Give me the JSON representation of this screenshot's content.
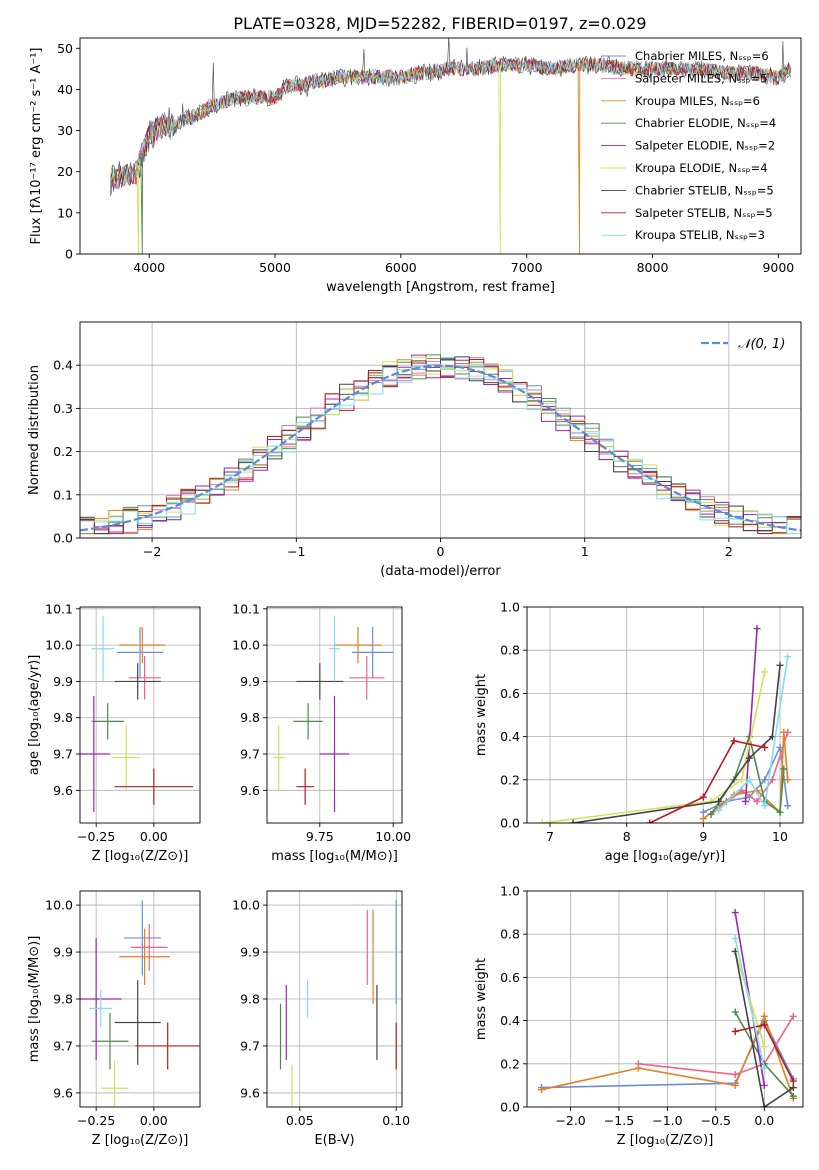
{
  "figure_title": "PLATE=0328, MJD=52282, FIBERID=0197, z=0.029",
  "chart_data": [
    {
      "id": "spectrum",
      "type": "line",
      "xlabel": "wavelength [Angstrom, rest frame]",
      "ylabel": "Flux [fλ10⁻¹⁷ erg cm⁻² s⁻¹ A⁻¹]",
      "xlim": [
        3450,
        9180
      ],
      "ylim": [
        0,
        52.5
      ],
      "xticks": [
        4000,
        5000,
        6000,
        7000,
        8000,
        9000
      ],
      "yticks": [
        0,
        10,
        20,
        30,
        40,
        50
      ],
      "grid": false,
      "legend_position": "top-right",
      "continuum_x": [
        3690,
        3800,
        3900,
        3950,
        4000,
        4100,
        4200,
        4300,
        4400,
        4500,
        4600,
        4700,
        4800,
        4900,
        5000,
        5100,
        5200,
        5300,
        5400,
        5500,
        5600,
        5800,
        6000,
        6200,
        6400,
        6600,
        6800,
        7000,
        7200,
        7400,
        7600,
        7800,
        8000,
        8200,
        8400,
        8600,
        8800,
        9000,
        9100
      ],
      "continuum_y": [
        18,
        19,
        20,
        25,
        29,
        31,
        31,
        33,
        34,
        36,
        37,
        38,
        38,
        38,
        38,
        41,
        41,
        42,
        42,
        43,
        43,
        43,
        43,
        44,
        45,
        45,
        46,
        46,
        45,
        46,
        46,
        45,
        45,
        45,
        45,
        44,
        44,
        43,
        45
      ],
      "series": [
        {
          "name": "Chabrier MILES, Nₛₛₚ=6",
          "color": "#6b8fd6"
        },
        {
          "name": "Salpeter MILES, Nₛₛₚ=5",
          "color": "#e377c2"
        },
        {
          "name": "Kroupa MILES, Nₛₛₚ=6",
          "color": "#d18b2c"
        },
        {
          "name": "Chabrier ELODIE, Nₛₛₚ=4",
          "color": "#4e8a4e"
        },
        {
          "name": "Salpeter ELODIE, Nₛₛₚ=2",
          "color": "#9c27b0"
        },
        {
          "name": "Kroupa ELODIE, Nₛₛₚ=4",
          "color": "#d4e157"
        },
        {
          "name": "Chabrier STELIB, Nₛₛₚ=5",
          "color": "#444444"
        },
        {
          "name": "Salpeter STELIB, Nₛₛₚ=5",
          "color": "#b71c1c"
        },
        {
          "name": "Kroupa STELIB, Nₛₛₚ=3",
          "color": "#80deea"
        }
      ]
    },
    {
      "id": "residuals",
      "type": "histogram",
      "xlabel": "(data-model)/error",
      "ylabel": "Normed distribution",
      "xlim": [
        -2.5,
        2.5
      ],
      "ylim": [
        0,
        0.5
      ],
      "xticks": [
        -2,
        -1,
        0,
        1,
        2
      ],
      "yticks": [
        0.0,
        0.1,
        0.2,
        0.3,
        0.4
      ],
      "grid": true,
      "legend_position": "top-right",
      "legend_entry": "𝒩(0, 1)",
      "reference_curve": {
        "type": "gaussian",
        "mean": 0,
        "sigma": 1,
        "color": "#5b8bd6"
      }
    },
    {
      "id": "age-vs-Z",
      "type": "errorbar",
      "xlabel": "Z [log₁₀(Z/Z⊙)]",
      "ylabel": "age  [log₁₀(age/yr)]",
      "xlim": [
        -0.32,
        0.2
      ],
      "ylim": [
        9.51,
        10.105
      ],
      "xticks": [
        -0.25,
        0.0
      ],
      "xticklabels": [
        "−0.25",
        "0.00"
      ],
      "yticks": [
        9.6,
        9.7,
        9.8,
        9.9,
        10.0,
        10.1
      ],
      "grid": true,
      "points": [
        {
          "x": -0.06,
          "y": 9.98,
          "xerr": 0.1,
          "yerr": 0.07,
          "color": "#6b8fd6"
        },
        {
          "x": -0.04,
          "y": 9.91,
          "xerr": 0.07,
          "yerr": 0.06,
          "color": "#f06292"
        },
        {
          "x": -0.05,
          "y": 10.0,
          "xerr": 0.1,
          "yerr": 0.05,
          "color": "#e67e22"
        },
        {
          "x": -0.2,
          "y": 9.79,
          "xerr": 0.07,
          "yerr": 0.05,
          "color": "#4e8a4e"
        },
        {
          "x": -0.26,
          "y": 9.7,
          "xerr": 0.07,
          "yerr": 0.16,
          "color": "#9c27b0"
        },
        {
          "x": -0.12,
          "y": 9.69,
          "xerr": 0.06,
          "yerr": 0.09,
          "color": "#d4e157"
        },
        {
          "x": -0.07,
          "y": 9.9,
          "xerr": 0.1,
          "yerr": 0.05,
          "color": "#444444"
        },
        {
          "x": 0.0,
          "y": 9.61,
          "xerr": 0.17,
          "yerr": 0.05,
          "color": "#b71c1c"
        },
        {
          "x": -0.22,
          "y": 9.99,
          "xerr": 0.05,
          "yerr": 0.09,
          "color": "#80deea"
        }
      ]
    },
    {
      "id": "age-vs-mass",
      "type": "errorbar",
      "xlabel": "mass [log₁₀(M/M⊙)]",
      "ylabel": "",
      "xlim": [
        9.57,
        10.03
      ],
      "ylim": [
        9.51,
        10.105
      ],
      "xticks": [
        9.75,
        10.0
      ],
      "xticklabels": [
        "9.75",
        "10.00"
      ],
      "yticks": [
        9.6,
        9.7,
        9.8,
        9.9,
        10.0,
        10.1
      ],
      "grid": true,
      "points": [
        {
          "x": 9.93,
          "y": 9.98,
          "xerr": 0.07,
          "yerr": 0.07,
          "color": "#6b8fd6"
        },
        {
          "x": 9.91,
          "y": 9.91,
          "xerr": 0.06,
          "yerr": 0.06,
          "color": "#f06292"
        },
        {
          "x": 9.88,
          "y": 10.0,
          "xerr": 0.08,
          "yerr": 0.05,
          "color": "#e67e22"
        },
        {
          "x": 9.71,
          "y": 9.79,
          "xerr": 0.05,
          "yerr": 0.05,
          "color": "#4e8a4e"
        },
        {
          "x": 9.8,
          "y": 9.7,
          "xerr": 0.05,
          "yerr": 0.16,
          "color": "#9c27b0"
        },
        {
          "x": 9.61,
          "y": 9.69,
          "xerr": 0.02,
          "yerr": 0.09,
          "color": "#d4e157"
        },
        {
          "x": 9.75,
          "y": 9.9,
          "xerr": 0.08,
          "yerr": 0.05,
          "color": "#444444"
        },
        {
          "x": 9.7,
          "y": 9.61,
          "xerr": 0.03,
          "yerr": 0.05,
          "color": "#b71c1c"
        },
        {
          "x": 9.8,
          "y": 9.99,
          "xerr": 0.02,
          "yerr": 0.09,
          "color": "#80deea"
        }
      ]
    },
    {
      "id": "weight-vs-age",
      "type": "line",
      "xlabel": "age  [log₁₀(age/yr)]",
      "ylabel": "mass weight",
      "xlim": [
        6.7,
        10.3
      ],
      "ylim": [
        0,
        1.0
      ],
      "xticks": [
        7,
        8,
        9,
        10
      ],
      "yticks": [
        0.0,
        0.2,
        0.4,
        0.6,
        0.8,
        1.0
      ],
      "grid": true,
      "series": [
        {
          "color": "#6b8fd6",
          "points": [
            [
              9.0,
              0.05
            ],
            [
              9.3,
              0.1
            ],
            [
              9.6,
              0.12
            ],
            [
              9.8,
              0.2
            ],
            [
              10.0,
              0.35
            ],
            [
              10.1,
              0.08
            ]
          ]
        },
        {
          "color": "#f06292",
          "points": [
            [
              9.1,
              0.04
            ],
            [
              9.5,
              0.15
            ],
            [
              9.7,
              0.1
            ],
            [
              9.9,
              0.2
            ],
            [
              10.1,
              0.42
            ]
          ]
        },
        {
          "color": "#e67e22",
          "points": [
            [
              9.0,
              0.02
            ],
            [
              9.4,
              0.13
            ],
            [
              9.7,
              0.15
            ],
            [
              10.0,
              0.05
            ],
            [
              10.05,
              0.42
            ],
            [
              10.1,
              0.2
            ]
          ]
        },
        {
          "color": "#4e8a4e",
          "points": [
            [
              9.1,
              0.04
            ],
            [
              9.4,
              0.2
            ],
            [
              9.6,
              0.4
            ],
            [
              9.8,
              0.1
            ],
            [
              10.0,
              0.05
            ],
            [
              10.05,
              0.25
            ]
          ]
        },
        {
          "color": "#9c27b0",
          "points": [
            [
              9.55,
              0.1
            ],
            [
              9.7,
              0.9
            ]
          ]
        },
        {
          "color": "#d4e157",
          "points": [
            [
              6.9,
              0.0
            ],
            [
              9.1,
              0.1
            ],
            [
              9.5,
              0.2
            ],
            [
              9.8,
              0.7
            ]
          ]
        },
        {
          "color": "#444444",
          "points": [
            [
              7.3,
              0.0
            ],
            [
              9.2,
              0.1
            ],
            [
              9.6,
              0.3
            ],
            [
              9.9,
              0.4
            ],
            [
              10.0,
              0.73
            ]
          ]
        },
        {
          "color": "#b71c1c",
          "points": [
            [
              8.3,
              0.0
            ],
            [
              9.0,
              0.12
            ],
            [
              9.4,
              0.38
            ],
            [
              9.8,
              0.35
            ]
          ]
        },
        {
          "color": "#80deea",
          "points": [
            [
              9.2,
              0.06
            ],
            [
              9.6,
              0.2
            ],
            [
              9.8,
              0.08
            ],
            [
              10.1,
              0.77
            ]
          ]
        }
      ]
    },
    {
      "id": "mass-vs-Z",
      "type": "errorbar",
      "xlabel": "Z [log₁₀(Z/Z⊙)]",
      "ylabel": "mass [log₁₀(M/M⊙)]",
      "xlim": [
        -0.32,
        0.2
      ],
      "ylim": [
        9.57,
        10.03
      ],
      "xticks": [
        -0.25,
        0.0
      ],
      "xticklabels": [
        "−0.25",
        "0.00"
      ],
      "yticks": [
        9.6,
        9.7,
        9.8,
        9.9,
        10.0
      ],
      "grid": true,
      "points": [
        {
          "x": -0.05,
          "y": 9.93,
          "xerr": 0.08,
          "yerr": 0.08,
          "color": "#6b8fd6"
        },
        {
          "x": -0.02,
          "y": 9.91,
          "xerr": 0.08,
          "yerr": 0.05,
          "color": "#f06292"
        },
        {
          "x": -0.04,
          "y": 9.89,
          "xerr": 0.11,
          "yerr": 0.06,
          "color": "#e67e22"
        },
        {
          "x": -0.19,
          "y": 9.71,
          "xerr": 0.08,
          "yerr": 0.06,
          "color": "#4e8a4e"
        },
        {
          "x": -0.25,
          "y": 9.8,
          "xerr": 0.11,
          "yerr": 0.13,
          "color": "#9c27b0"
        },
        {
          "x": -0.17,
          "y": 9.61,
          "xerr": 0.06,
          "yerr": 0.06,
          "color": "#d4e157"
        },
        {
          "x": -0.07,
          "y": 9.75,
          "xerr": 0.1,
          "yerr": 0.09,
          "color": "#444444"
        },
        {
          "x": 0.06,
          "y": 9.7,
          "xerr": 0.14,
          "yerr": 0.05,
          "color": "#b71c1c"
        },
        {
          "x": -0.23,
          "y": 9.78,
          "xerr": 0.05,
          "yerr": 0.04,
          "color": "#80deea"
        }
      ]
    },
    {
      "id": "mass-vs-ebv",
      "type": "errorbar",
      "xlabel": "E(B-V)",
      "ylabel": "",
      "xlim": [
        0.033,
        0.103
      ],
      "ylim": [
        9.57,
        10.03
      ],
      "xticks": [
        0.05,
        0.1
      ],
      "xticklabels": [
        "0.05",
        "0.10"
      ],
      "yticks": [
        9.6,
        9.7,
        9.8,
        9.9,
        10.0
      ],
      "grid": true,
      "points": [
        {
          "x": 0.1,
          "y": 9.9,
          "xerr": 0,
          "yerr": 0.11,
          "color": "#6b8fd6"
        },
        {
          "x": 0.085,
          "y": 9.91,
          "xerr": 0,
          "yerr": 0.08,
          "color": "#f06292"
        },
        {
          "x": 0.088,
          "y": 9.89,
          "xerr": 0,
          "yerr": 0.1,
          "color": "#e67e22"
        },
        {
          "x": 0.04,
          "y": 9.72,
          "xerr": 0,
          "yerr": 0.07,
          "color": "#4e8a4e"
        },
        {
          "x": 0.043,
          "y": 9.75,
          "xerr": 0,
          "yerr": 0.08,
          "color": "#9c27b0"
        },
        {
          "x": 0.046,
          "y": 9.61,
          "xerr": 0,
          "yerr": 0.05,
          "color": "#d4e157"
        },
        {
          "x": 0.09,
          "y": 9.75,
          "xerr": 0,
          "yerr": 0.08,
          "color": "#444444"
        },
        {
          "x": 0.1,
          "y": 9.7,
          "xerr": 0,
          "yerr": 0.05,
          "color": "#b71c1c"
        },
        {
          "x": 0.054,
          "y": 9.8,
          "xerr": 0,
          "yerr": 0.04,
          "color": "#80deea"
        }
      ]
    },
    {
      "id": "weight-vs-Z",
      "type": "line",
      "xlabel": "Z [log₁₀(Z/Z⊙)]",
      "ylabel": "mass weight",
      "xlim": [
        -2.45,
        0.4
      ],
      "ylim": [
        0,
        1.0
      ],
      "xticks": [
        -2.0,
        -1.5,
        -1.0,
        -0.5,
        0.0
      ],
      "xticklabels": [
        "−2.0",
        "−1.5",
        "−1.0",
        "−0.5",
        "0.0"
      ],
      "yticks": [
        0.0,
        0.2,
        0.4,
        0.6,
        0.8,
        1.0
      ],
      "grid": true,
      "series": [
        {
          "color": "#6b8fd6",
          "points": [
            [
              -2.3,
              0.09
            ],
            [
              -0.3,
              0.11
            ],
            [
              0.0,
              0.4
            ],
            [
              0.3,
              0.13
            ]
          ]
        },
        {
          "color": "#f06292",
          "points": [
            [
              -1.3,
              0.2
            ],
            [
              -0.3,
              0.15
            ],
            [
              0.0,
              0.2
            ],
            [
              0.3,
              0.42
            ]
          ]
        },
        {
          "color": "#e67e22",
          "points": [
            [
              -2.3,
              0.08
            ],
            [
              -1.3,
              0.18
            ],
            [
              -0.3,
              0.1
            ],
            [
              0.0,
              0.42
            ],
            [
              0.3,
              0.04
            ]
          ]
        },
        {
          "color": "#4e8a4e",
          "points": [
            [
              -0.3,
              0.44
            ],
            [
              0.0,
              0.2
            ],
            [
              0.3,
              0.05
            ]
          ]
        },
        {
          "color": "#9c27b0",
          "points": [
            [
              -0.3,
              0.9
            ],
            [
              0.0,
              0.1
            ]
          ]
        },
        {
          "color": "#d4e157",
          "points": [
            [
              -0.3,
              0.72
            ],
            [
              0.0,
              0.28
            ]
          ]
        },
        {
          "color": "#444444",
          "points": [
            [
              -0.3,
              0.72
            ],
            [
              0.0,
              0.0
            ],
            [
              0.3,
              0.09
            ]
          ]
        },
        {
          "color": "#b71c1c",
          "points": [
            [
              -0.3,
              0.35
            ],
            [
              0.0,
              0.38
            ],
            [
              0.3,
              0.12
            ]
          ]
        },
        {
          "color": "#80deea",
          "points": [
            [
              -0.3,
              0.78
            ],
            [
              0.0,
              0.18
            ]
          ]
        }
      ]
    }
  ]
}
